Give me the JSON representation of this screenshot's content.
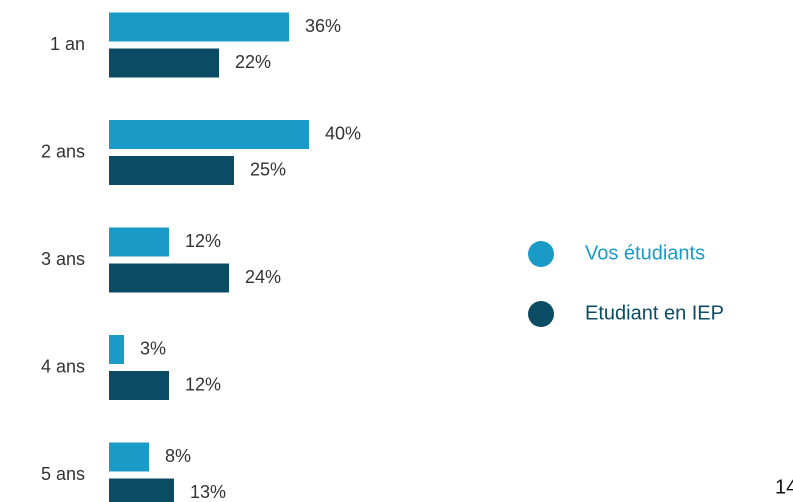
{
  "chart_data": {
    "type": "bar",
    "orientation": "horizontal",
    "categories": [
      "1 an",
      "2 ans",
      "3 ans",
      "4 ans",
      "5 ans"
    ],
    "series": [
      {
        "name": "Vos étudiants",
        "color": "#1a9bc7",
        "values": [
          36,
          40,
          12,
          3,
          8
        ],
        "value_labels": [
          "36%",
          "40%",
          "12%",
          "3%",
          "8%"
        ]
      },
      {
        "name": "Etudiant en IEP",
        "color": "#0b4b63",
        "values": [
          22,
          25,
          24,
          12,
          13
        ],
        "value_labels": [
          "22%",
          "25%",
          "24%",
          "12%",
          "13%"
        ]
      }
    ],
    "legend": "right",
    "page_number": "14"
  }
}
